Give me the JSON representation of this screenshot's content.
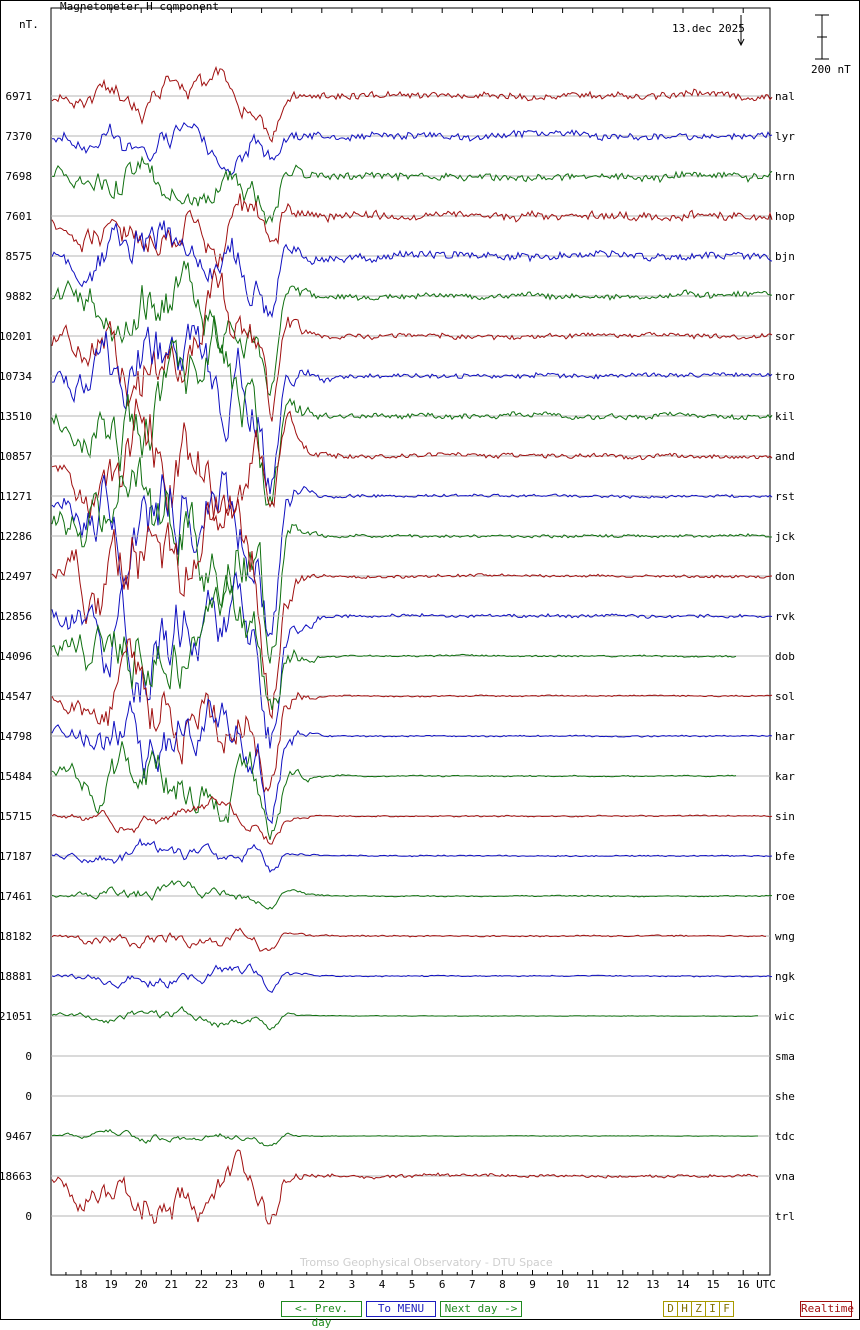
{
  "header": {
    "title": "Magnetometer H component",
    "unit": "nT.",
    "date": "13.dec 2025",
    "scale_label": "200 nT"
  },
  "footer": "Tromso Geophysical Observatory - DTU Space",
  "nav": {
    "prev": "<- Prev. day",
    "menu": "To MENU",
    "next": "Next day ->",
    "components": [
      "D",
      "H",
      "Z",
      "I",
      "F"
    ],
    "realtime": "Realtime"
  },
  "colors": {
    "red": "#a01010",
    "blue": "#1010c0",
    "green": "#107010",
    "grid": "#b4b4b4",
    "axis": "#000000"
  },
  "chart_data": {
    "type": "line",
    "title": "Magnetometer H component",
    "ylabel": "nT.",
    "x_ticks": [
      "18",
      "19",
      "20",
      "21",
      "22",
      "23",
      "0",
      "1",
      "2",
      "3",
      "4",
      "5",
      "6",
      "7",
      "8",
      "9",
      "10",
      "11",
      "12",
      "13",
      "14",
      "15",
      "16"
    ],
    "x_unit_label": "UTC",
    "x_range_hours": [
      17,
      41.3
    ],
    "scale_bar_nT": 200,
    "grid": true,
    "stations": [
      {
        "code": "nal",
        "baseline": "6971",
        "color": "red",
        "end_hour": 41.0,
        "storm": 0.5,
        "noise": 0.6
      },
      {
        "code": "lyr",
        "baseline": "7370",
        "color": "blue",
        "end_hour": 41.0,
        "storm": 0.55,
        "noise": 0.6
      },
      {
        "code": "hrn",
        "baseline": "7698",
        "color": "green",
        "end_hour": 41.0,
        "storm": 0.8,
        "noise": 0.65
      },
      {
        "code": "hop",
        "baseline": "7601",
        "color": "red",
        "end_hour": 41.0,
        "storm": 0.9,
        "noise": 0.7
      },
      {
        "code": "bjn",
        "baseline": "8575",
        "color": "blue",
        "end_hour": 41.0,
        "storm": 1.0,
        "noise": 0.7
      },
      {
        "code": "nor",
        "baseline": "9882",
        "color": "green",
        "end_hour": 41.0,
        "storm": 1.3,
        "noise": 0.5
      },
      {
        "code": "sor",
        "baseline": "10201",
        "color": "red",
        "end_hour": 41.0,
        "storm": 1.5,
        "noise": 0.45
      },
      {
        "code": "tro",
        "baseline": "10734",
        "color": "blue",
        "end_hour": 41.0,
        "storm": 1.6,
        "noise": 0.45
      },
      {
        "code": "kil",
        "baseline": "13510",
        "color": "green",
        "end_hour": 41.0,
        "storm": 1.7,
        "noise": 0.45
      },
      {
        "code": "and",
        "baseline": "10857",
        "color": "red",
        "end_hour": 41.0,
        "storm": 1.8,
        "noise": 0.4
      },
      {
        "code": "rst",
        "baseline": "11271",
        "color": "blue",
        "end_hour": 41.0,
        "storm": 1.8,
        "noise": 0.25
      },
      {
        "code": "jck",
        "baseline": "12286",
        "color": "green",
        "end_hour": 41.0,
        "storm": 1.9,
        "noise": 0.25
      },
      {
        "code": "don",
        "baseline": "12497",
        "color": "red",
        "end_hour": 41.0,
        "storm": 1.9,
        "noise": 0.25
      },
      {
        "code": "rvk",
        "baseline": "12856",
        "color": "blue",
        "end_hour": 41.0,
        "storm": 1.8,
        "noise": 0.3
      },
      {
        "code": "dob",
        "baseline": "14096",
        "color": "green",
        "end_hour": 39.8,
        "storm": 1.6,
        "noise": 0.15
      },
      {
        "code": "sol",
        "baseline": "14547",
        "color": "red",
        "end_hour": 41.0,
        "storm": 1.5,
        "noise": 0.12
      },
      {
        "code": "har",
        "baseline": "14798",
        "color": "blue",
        "end_hour": 41.0,
        "storm": 1.3,
        "noise": 0.12
      },
      {
        "code": "kar",
        "baseline": "15484",
        "color": "green",
        "end_hour": 39.8,
        "storm": 1.1,
        "noise": 0.1
      },
      {
        "code": "sin",
        "baseline": "15715",
        "color": "red",
        "end_hour": 41.0,
        "storm": 0.35,
        "noise": 0.12
      },
      {
        "code": "bfe",
        "baseline": "17187",
        "color": "blue",
        "end_hour": 41.0,
        "storm": 0.35,
        "noise": 0.12
      },
      {
        "code": "roe",
        "baseline": "17461",
        "color": "green",
        "end_hour": 41.0,
        "storm": 0.3,
        "noise": 0.1
      },
      {
        "code": "wng",
        "baseline": "18182",
        "color": "red",
        "end_hour": 40.8,
        "storm": 0.3,
        "noise": 0.12
      },
      {
        "code": "ngk",
        "baseline": "18881",
        "color": "blue",
        "end_hour": 41.0,
        "storm": 0.3,
        "noise": 0.1
      },
      {
        "code": "wic",
        "baseline": "21051",
        "color": "green",
        "end_hour": 40.5,
        "storm": 0.25,
        "noise": 0.05
      },
      {
        "code": "sma",
        "baseline": "0",
        "color": "none",
        "end_hour": 0,
        "storm": 0,
        "noise": 0
      },
      {
        "code": "she",
        "baseline": "0",
        "color": "none",
        "end_hour": 0,
        "storm": 0,
        "noise": 0
      },
      {
        "code": "tdc",
        "baseline": "9467",
        "color": "green",
        "end_hour": 40.5,
        "storm": 0.2,
        "noise": 0.05
      },
      {
        "code": "vna",
        "baseline": "18663",
        "color": "red",
        "end_hour": 40.5,
        "storm": 0.9,
        "noise": 0.3
      },
      {
        "code": "trl",
        "baseline": "0",
        "color": "none",
        "end_hour": 0,
        "storm": 0,
        "noise": 0
      }
    ]
  }
}
